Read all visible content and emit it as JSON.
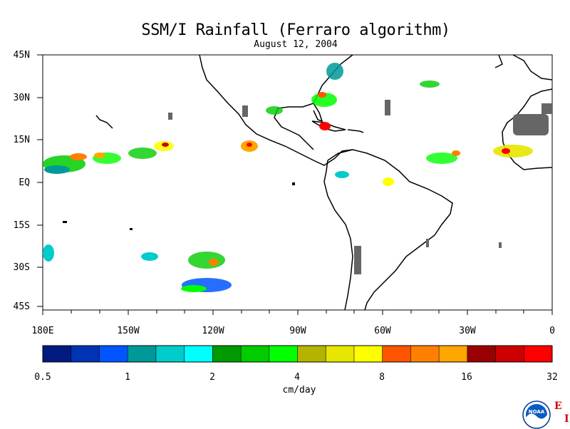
{
  "title": "SSM/I Rainfall (Ferraro algorithm)",
  "date": "August 12, 2004",
  "lat_labels": [
    "45N",
    "30N",
    "15N",
    "EQ",
    "15S",
    "30S",
    "45S"
  ],
  "lon_labels": [
    "180E",
    "150W",
    "120W",
    "90W",
    "60W",
    "30W",
    "0"
  ],
  "colorbar": {
    "units": "cm/day",
    "tick_labels": [
      "0.5",
      "1",
      "2",
      "4",
      "8",
      "16",
      "32"
    ],
    "colors": [
      "#001a7f",
      "#0033b3",
      "#0055ff",
      "#009999",
      "#00cccc",
      "#00ffff",
      "#009900",
      "#00cc00",
      "#00ff00",
      "#b3b300",
      "#e6e600",
      "#ffff00",
      "#ff5500",
      "#ff8000",
      "#ffa600",
      "#990000",
      "#cc0000",
      "#ff0000"
    ]
  },
  "logo": {
    "icon": "noaa-logo-icon",
    "text": "NOAA"
  },
  "corner_mark": {
    "e": "E",
    "i": "I"
  }
}
